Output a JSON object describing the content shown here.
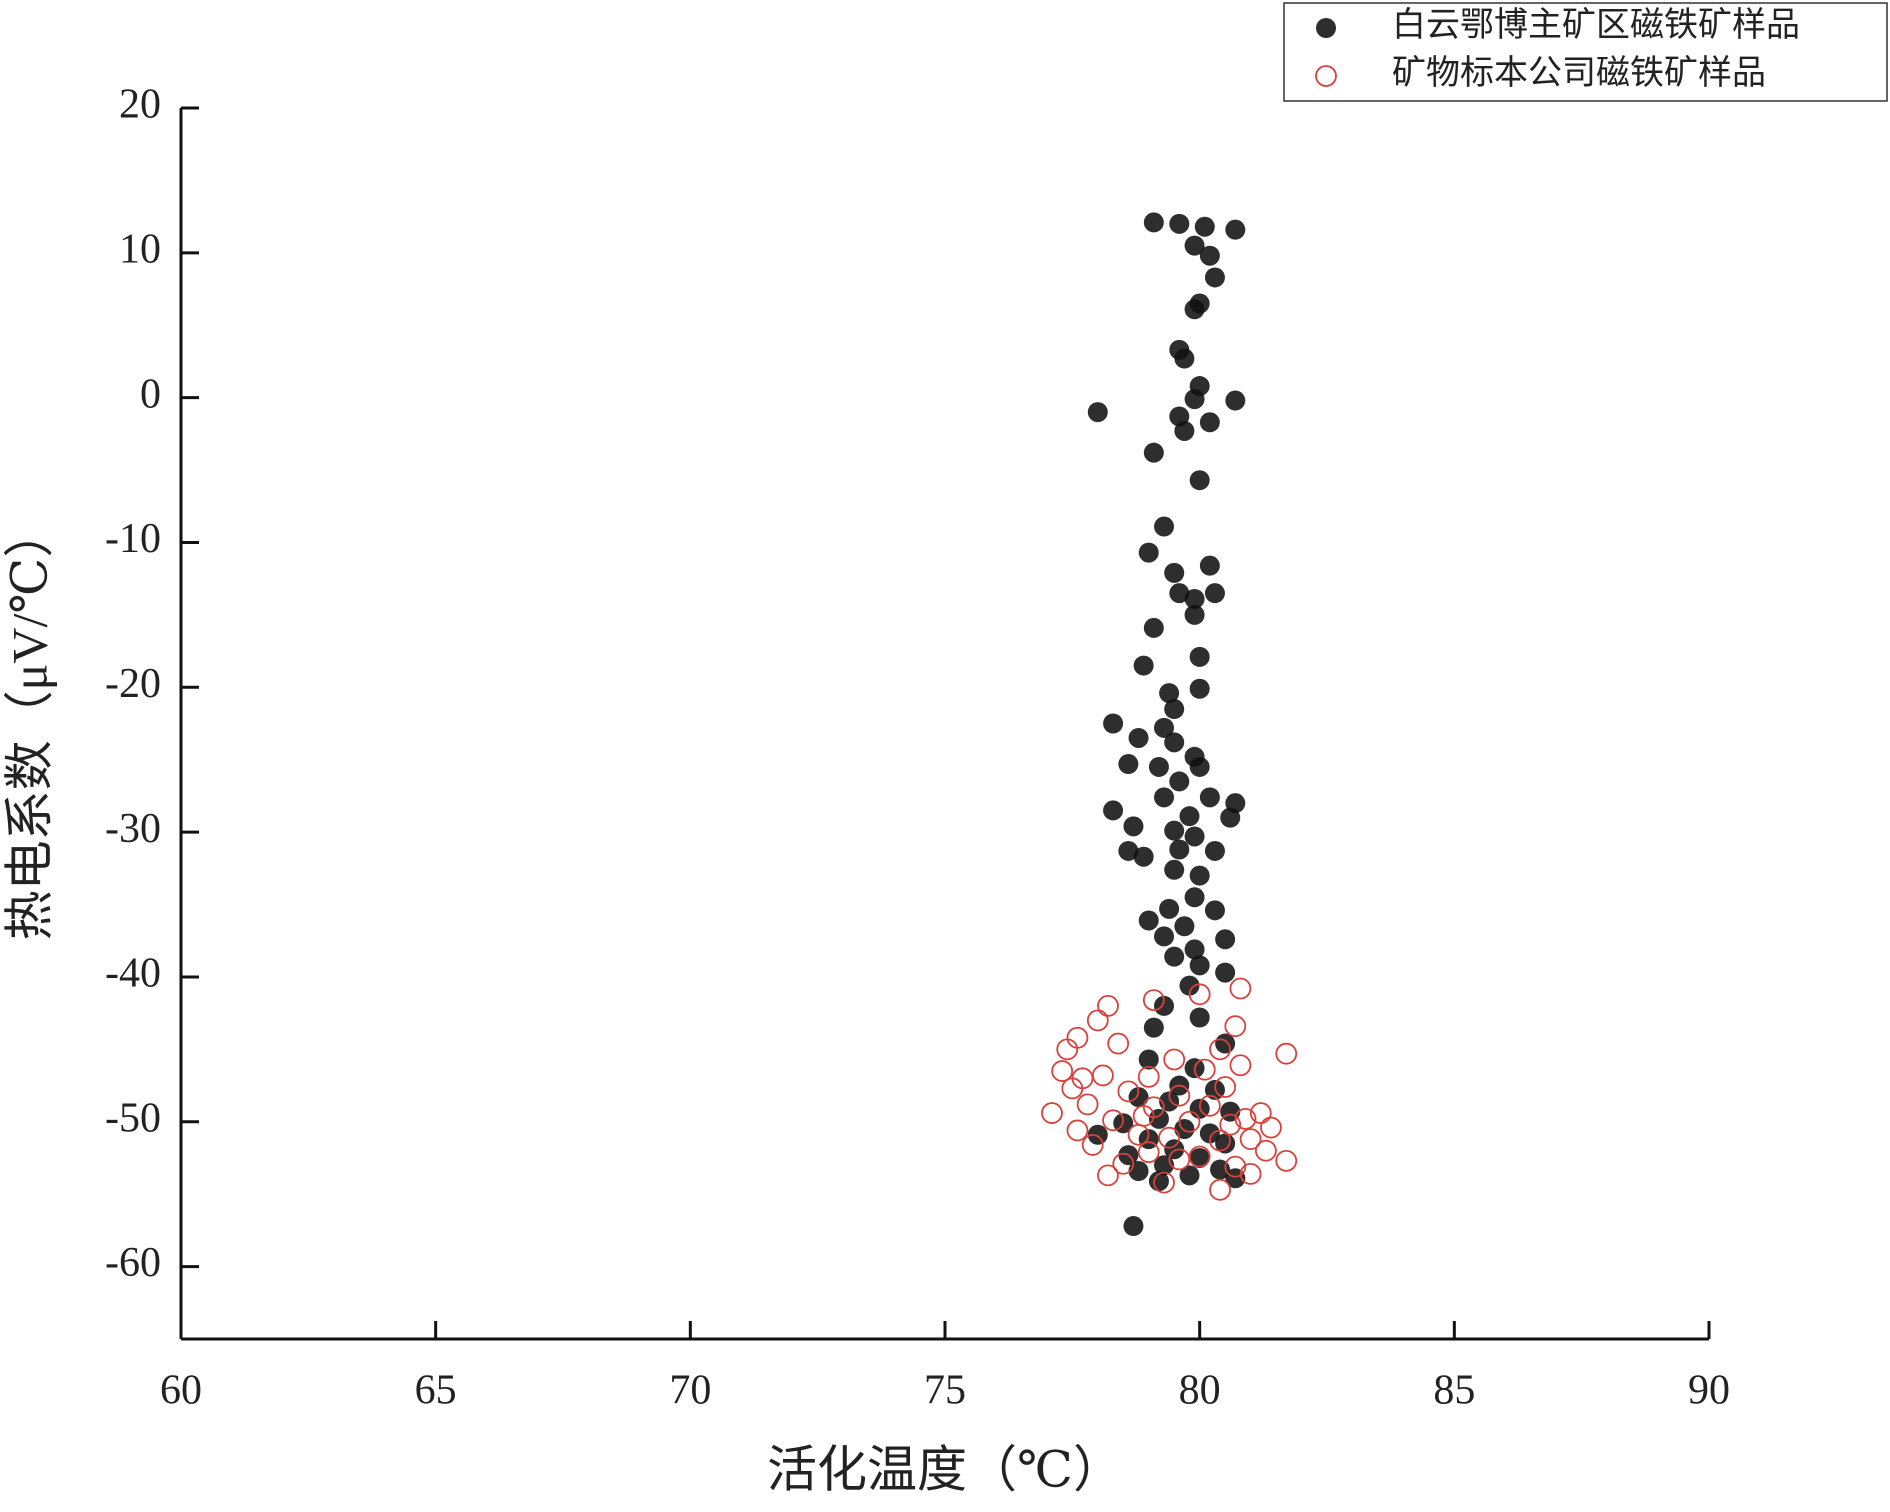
{
  "chart_data": {
    "type": "scatter",
    "x_label": "活化温度（℃）",
    "y_label": "热电系数（μV/℃）",
    "xlim": [
      60,
      90
    ],
    "xticks": [
      60,
      65,
      70,
      75,
      80,
      85,
      90
    ],
    "ylim": [
      -65,
      20
    ],
    "yticks": [
      -60,
      -50,
      -40,
      -30,
      -20,
      -10,
      0,
      10,
      20
    ],
    "grid": false,
    "legend": "upper right",
    "series": [
      {
        "name": "白云鄂博主矿区磁铁矿样品",
        "color": "#111111",
        "marker": "filled",
        "x": [
          79.1,
          79.6,
          80.1,
          80.7,
          79.9,
          80.2,
          80.3,
          80.0,
          79.9,
          79.6,
          79.7,
          80.0,
          79.9,
          80.7,
          78.0,
          79.6,
          80.2,
          79.7,
          79.1,
          80.0,
          79.3,
          79.0,
          80.2,
          79.5,
          79.9,
          80.3,
          79.6,
          79.9,
          79.1,
          80.0,
          78.9,
          80.0,
          79.4,
          79.5,
          78.3,
          79.3,
          78.8,
          79.5,
          79.9,
          80.0,
          78.6,
          79.2,
          79.6,
          79.3,
          80.2,
          80.7,
          78.3,
          79.8,
          80.6,
          78.7,
          79.5,
          79.9,
          79.6,
          80.3,
          78.6,
          78.9,
          79.5,
          80.0,
          79.9,
          79.4,
          80.3,
          79.0,
          79.7,
          79.3,
          80.5,
          79.9,
          79.5,
          80.0,
          80.5,
          79.8,
          79.3,
          80.0,
          79.1,
          80.5,
          79.0,
          79.9,
          79.6,
          80.3,
          78.8,
          79.4,
          80.0,
          80.6,
          79.2,
          78.5,
          79.7,
          80.2,
          78.0,
          79.0,
          80.5,
          79.5,
          78.6,
          80.0,
          79.3,
          80.4,
          78.8,
          79.8,
          79.2,
          80.7,
          78.7
        ],
        "y": [
          12.1,
          12.0,
          11.8,
          11.6,
          10.5,
          9.8,
          8.3,
          6.5,
          6.1,
          3.3,
          2.7,
          0.8,
          -0.1,
          -0.2,
          -1.0,
          -1.3,
          -1.7,
          -2.3,
          -3.8,
          -5.7,
          -8.9,
          -10.7,
          -11.6,
          -12.1,
          -13.9,
          -13.5,
          -13.5,
          -15.0,
          -15.9,
          -17.9,
          -18.5,
          -20.1,
          -20.4,
          -21.5,
          -22.5,
          -22.8,
          -23.5,
          -23.8,
          -24.8,
          -25.5,
          -25.3,
          -25.5,
          -26.5,
          -27.6,
          -27.6,
          -28.0,
          -28.5,
          -28.9,
          -29.0,
          -29.6,
          -29.9,
          -30.3,
          -31.2,
          -31.3,
          -31.3,
          -31.7,
          -32.6,
          -33.0,
          -34.5,
          -35.3,
          -35.4,
          -36.1,
          -36.5,
          -37.2,
          -37.4,
          -38.1,
          -38.6,
          -39.2,
          -39.7,
          -40.6,
          -42.0,
          -42.8,
          -43.5,
          -44.6,
          -45.7,
          -46.3,
          -47.5,
          -47.8,
          -48.3,
          -48.6,
          -49.1,
          -49.3,
          -49.8,
          -50.1,
          -50.5,
          -50.8,
          -50.9,
          -51.2,
          -51.5,
          -51.9,
          -52.3,
          -52.5,
          -53.0,
          -53.3,
          -53.4,
          -53.7,
          -54.1,
          -53.9,
          -57.2
        ]
      },
      {
        "name": "矿物标本公司磁铁矿样品",
        "color": "#d9413b",
        "marker": "hollow",
        "x": [
          80.8,
          78.2,
          79.1,
          80.0,
          78.0,
          77.6,
          80.7,
          81.7,
          77.4,
          78.4,
          79.5,
          80.4,
          77.3,
          78.1,
          79.0,
          80.1,
          80.8,
          77.5,
          78.6,
          79.6,
          80.5,
          77.8,
          79.1,
          80.2,
          81.2,
          77.1,
          78.3,
          79.8,
          80.9,
          81.4,
          77.6,
          78.8,
          79.4,
          80.4,
          81.0,
          77.9,
          79.0,
          80.0,
          81.3,
          78.5,
          79.6,
          80.7,
          81.7,
          78.2,
          79.3,
          80.4,
          81.0,
          78.9,
          80.6,
          77.7
        ],
        "y": [
          -40.8,
          -42.0,
          -41.6,
          -41.2,
          -43.0,
          -44.2,
          -43.4,
          -45.3,
          -45.0,
          -44.6,
          -45.7,
          -45.0,
          -46.5,
          -46.8,
          -46.9,
          -46.4,
          -46.1,
          -47.7,
          -47.9,
          -48.2,
          -47.6,
          -48.8,
          -49.0,
          -48.9,
          -49.4,
          -49.4,
          -49.9,
          -50.0,
          -49.8,
          -50.4,
          -50.6,
          -50.9,
          -51.1,
          -51.3,
          -51.2,
          -51.6,
          -52.1,
          -52.4,
          -52.0,
          -52.9,
          -52.6,
          -53.1,
          -52.7,
          -53.7,
          -54.2,
          -54.7,
          -53.6,
          -49.6,
          -50.2,
          -47.0
        ]
      }
    ]
  }
}
